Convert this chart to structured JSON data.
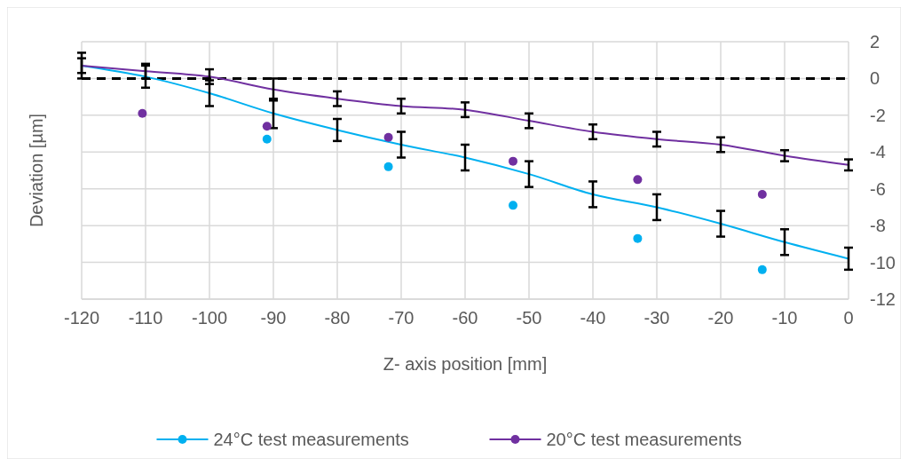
{
  "chart_data": {
    "type": "line",
    "xlabel": "Z- axis position [mm]",
    "ylabel": "Deviation [µm]",
    "xlim": [
      -120,
      0
    ],
    "xticks": [
      -120,
      -110,
      -100,
      -90,
      -80,
      -70,
      -60,
      -50,
      -40,
      -30,
      -20,
      -10,
      0
    ],
    "ylim": [
      -12,
      2
    ],
    "yticks": [
      -12,
      -10,
      -8,
      -6,
      -4,
      -2,
      0,
      2
    ],
    "x": [
      -120,
      -110,
      -100,
      -90,
      -80,
      -70,
      -60,
      -50,
      -40,
      -30,
      -20,
      -10,
      0
    ],
    "series": [
      {
        "name": "24°C test measurements",
        "color": "#00b0f0",
        "values": [
          0.7,
          0.1,
          -0.8,
          -1.9,
          -2.8,
          -3.6,
          -4.3,
          -5.2,
          -6.3,
          -7.0,
          -7.9,
          -8.9,
          -9.8
        ],
        "errors": [
          0.7,
          0.6,
          0.7,
          0.8,
          0.6,
          0.7,
          0.7,
          0.7,
          0.7,
          0.7,
          0.7,
          0.7,
          0.6
        ],
        "marker": "none"
      },
      {
        "name": "20°C test measurements",
        "color": "#7030a0",
        "values": [
          0.7,
          0.4,
          0.1,
          -0.6,
          -1.1,
          -1.5,
          -1.7,
          -2.3,
          -2.9,
          -3.3,
          -3.6,
          -4.2,
          -4.7
        ],
        "errors": [
          0.4,
          0.4,
          0.4,
          0.6,
          0.4,
          0.4,
          0.4,
          0.4,
          0.4,
          0.4,
          0.4,
          0.3,
          0.3
        ],
        "marker": "none"
      },
      {
        "type": "scatter",
        "color": "#00b0f0",
        "x": [
          -91,
          -72,
          -52.5,
          -33,
          -13.5
        ],
        "values": [
          -3.3,
          -4.8,
          -6.9,
          -8.7,
          -10.4
        ],
        "marker": "circle"
      },
      {
        "type": "scatter",
        "color": "#7030a0",
        "x": [
          -110.5,
          -91,
          -72,
          -52.5,
          -33,
          -13.5
        ],
        "values": [
          -1.9,
          -2.6,
          -3.2,
          -4.5,
          -5.5,
          -6.3
        ],
        "marker": "circle"
      }
    ],
    "grid": true,
    "legend": "bottom",
    "ref_lines": [
      {
        "axis": "y",
        "value": 0,
        "color": "#000000",
        "line_style": "dashed"
      }
    ]
  }
}
